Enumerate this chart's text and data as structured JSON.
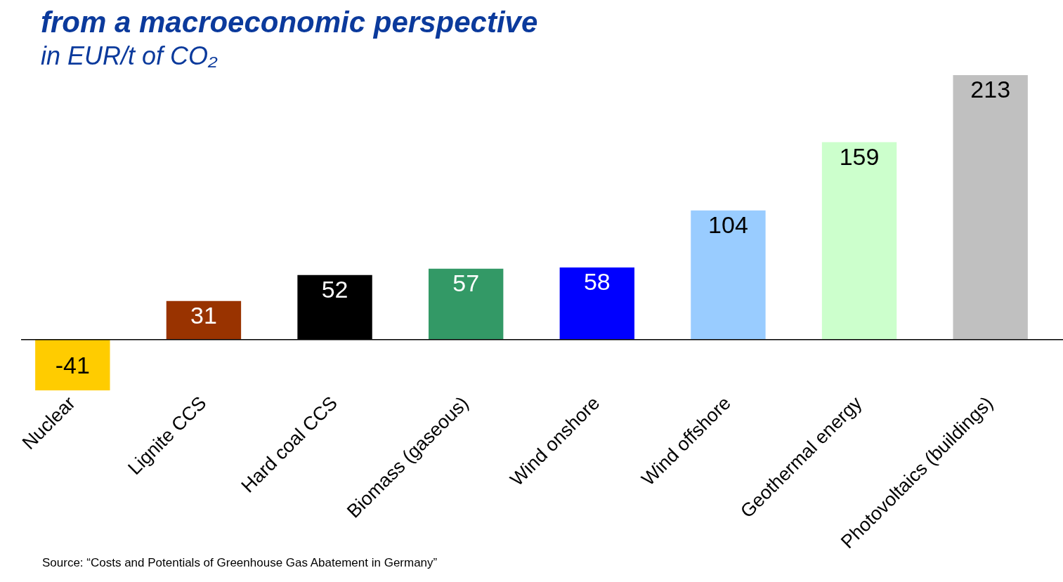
{
  "chart_data": {
    "type": "bar",
    "title": "from a macroeconomic perspective",
    "subtitle": "in EUR/t of CO₂",
    "categories": [
      "Nuclear",
      "Lignite CCS",
      "Hard coal CCS",
      "Biomass (gaseous)",
      "Wind onshore",
      "Wind offshore",
      "Geothermal energy",
      "Photovoltaics (buildings)"
    ],
    "values": [
      -41,
      31,
      52,
      57,
      58,
      104,
      159,
      213
    ],
    "colors": [
      "#ffcc00",
      "#993300",
      "#000000",
      "#339966",
      "#0000ff",
      "#99ccff",
      "#ccffcc",
      "#c0c0c0"
    ],
    "data_labels": true,
    "grid": false,
    "legend": false,
    "annotations": [
      "Source: “Costs and Potentials of Greenhouse Gas Abatement in Germany”"
    ]
  }
}
